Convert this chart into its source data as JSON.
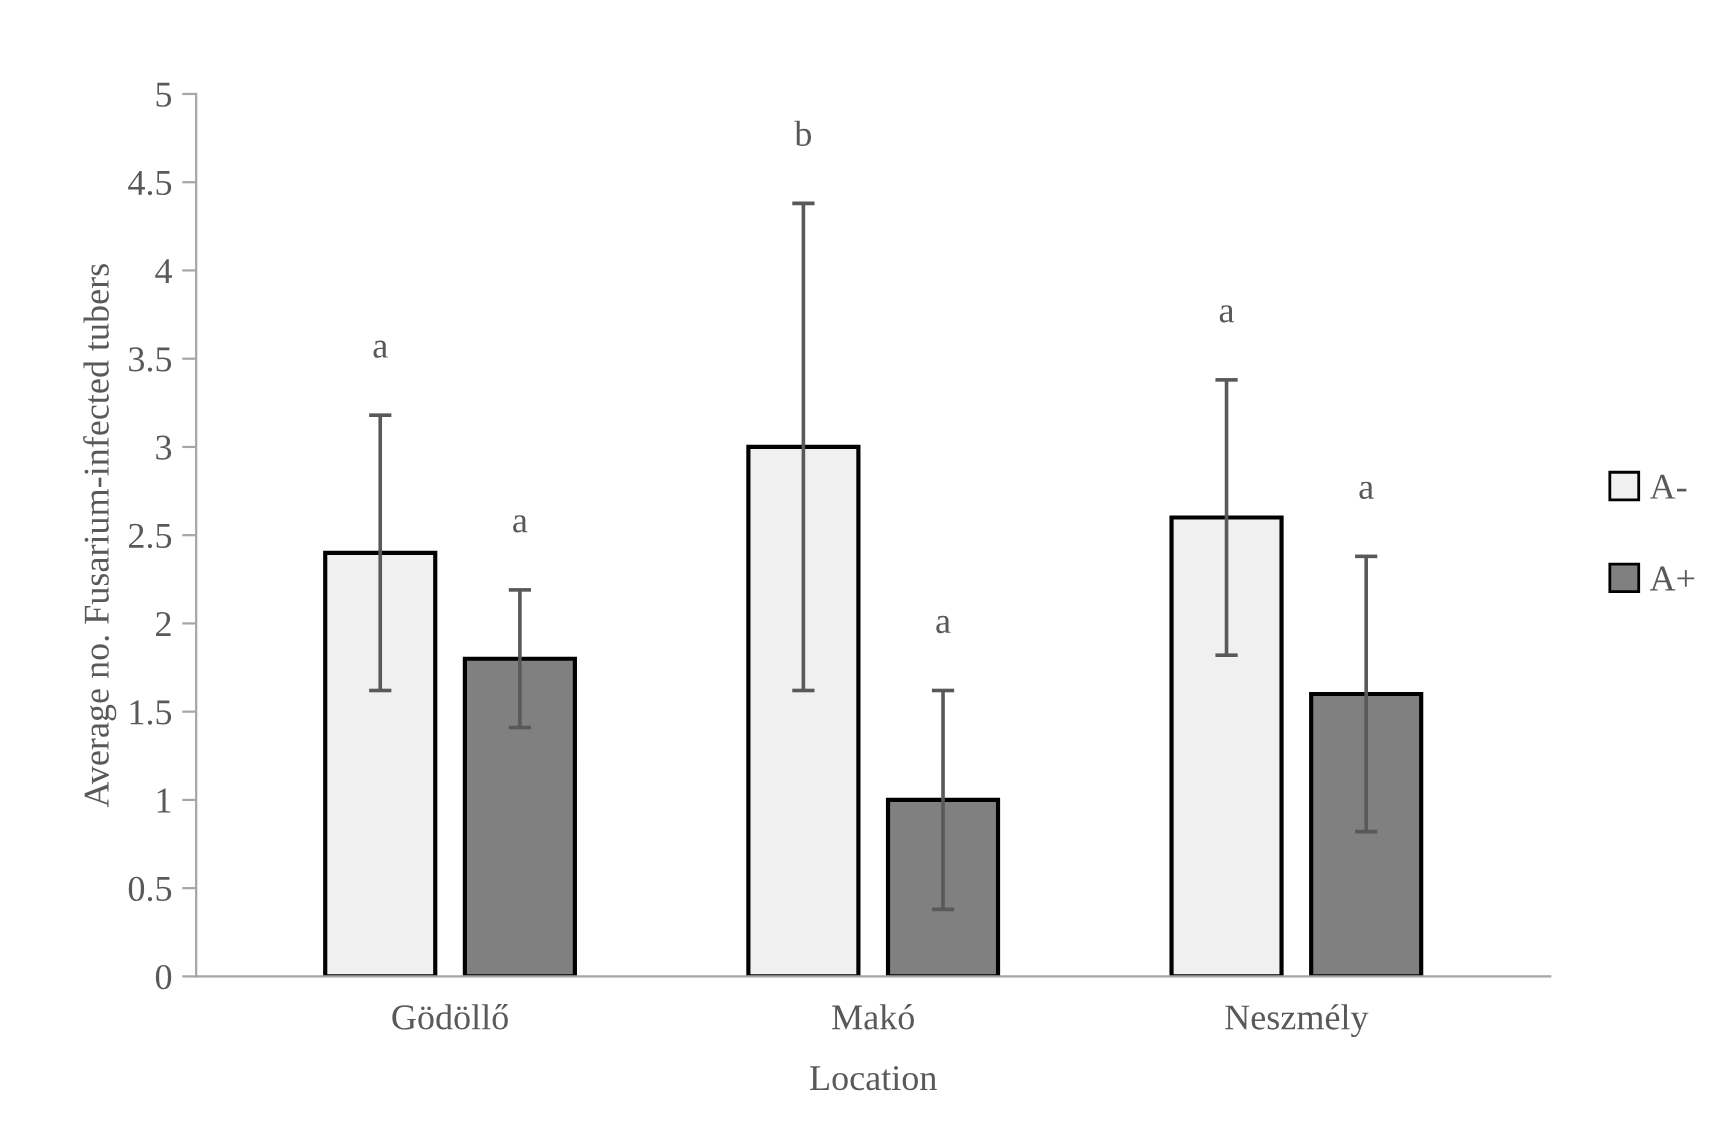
{
  "chart_data": {
    "type": "bar",
    "xlabel": "Location",
    "ylabel": "Average no. Fusarium-infected tubers",
    "categories": [
      "Gödöllő",
      "Makó",
      "Neszmély"
    ],
    "series": [
      {
        "name": "A-",
        "color": "#f0f0f0",
        "values": [
          2.4,
          3.0,
          2.6
        ],
        "errors": [
          0.78,
          1.38,
          0.78
        ]
      },
      {
        "name": "A+",
        "color": "#808080",
        "values": [
          1.8,
          1.0,
          1.6
        ],
        "errors": [
          0.39,
          0.62,
          0.78
        ]
      }
    ],
    "annotations": [
      "a",
      "a",
      "b",
      "a",
      "a",
      "a"
    ],
    "ylim": [
      0,
      5
    ],
    "yticks": [
      0,
      0.5,
      1,
      1.5,
      2,
      2.5,
      3,
      3.5,
      4,
      4.5,
      5
    ],
    "grid": false,
    "legend": "right"
  }
}
